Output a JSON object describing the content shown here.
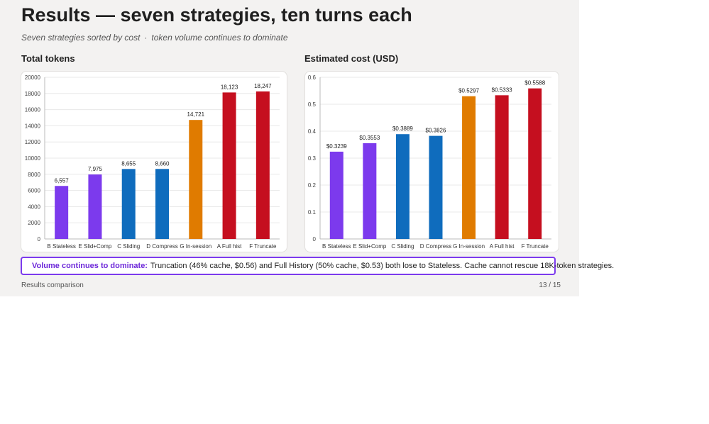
{
  "slide": {
    "title": "Results — seven strategies, ten turns each",
    "subtitle_part1": "Seven strategies sorted by cost",
    "subtitle_sep": "·",
    "subtitle_part2": "token volume continues to dominate",
    "callout_lead": "Volume continues to dominate:",
    "callout_text": "Truncation (46% cache, $0.56) and Full History (50% cache, $0.53) both lose to Stateless. Cache cannot rescue 18K-token strategies.",
    "footer_left": "Results comparison",
    "footer_right": "13 / 15"
  },
  "colors": {
    "purple": "#7c3aed",
    "blue": "#0f6cbd",
    "orange": "#e07b00",
    "red": "#c50f1f",
    "callout_border": "#7c3aed"
  },
  "chart_data": [
    {
      "type": "bar",
      "title": "Total tokens",
      "categories": [
        "B Stateless",
        "E Slid+Comp",
        "C Sliding",
        "D Compress",
        "G In-session",
        "A Full hist",
        "F Truncate"
      ],
      "values": [
        6557,
        7975,
        8655,
        8660,
        14721,
        18123,
        18247
      ],
      "data_labels": [
        "6,557",
        "7,975",
        "8,655",
        "8,660",
        "14,721",
        "18,123",
        "18,247"
      ],
      "bar_colors": [
        "purple",
        "purple",
        "blue",
        "blue",
        "orange",
        "red",
        "red"
      ],
      "ylim": [
        0,
        20000
      ],
      "yticks": [
        "0",
        "2000",
        "4000",
        "6000",
        "8000",
        "10000",
        "12000",
        "14000",
        "16000",
        "18000",
        "20000"
      ],
      "grid": true,
      "legend": false
    },
    {
      "type": "bar",
      "title": "Estimated cost (USD)",
      "categories": [
        "B Stateless",
        "E Slid+Comp",
        "C Sliding",
        "D Compress",
        "G In-session",
        "A Full hist",
        "F Truncate"
      ],
      "values": [
        0.3239,
        0.3553,
        0.3889,
        0.3826,
        0.5297,
        0.5333,
        0.5588
      ],
      "data_labels": [
        "$0.3239",
        "$0.3553",
        "$0.3889",
        "$0.3826",
        "$0.5297",
        "$0.5333",
        "$0.5588"
      ],
      "bar_colors": [
        "purple",
        "purple",
        "blue",
        "blue",
        "orange",
        "red",
        "red"
      ],
      "ylim": [
        0,
        0.6
      ],
      "yticks": [
        "0",
        "0.1",
        "0.2",
        "0.3",
        "0.4",
        "0.5",
        "0.6"
      ],
      "grid": true,
      "legend": false
    }
  ]
}
